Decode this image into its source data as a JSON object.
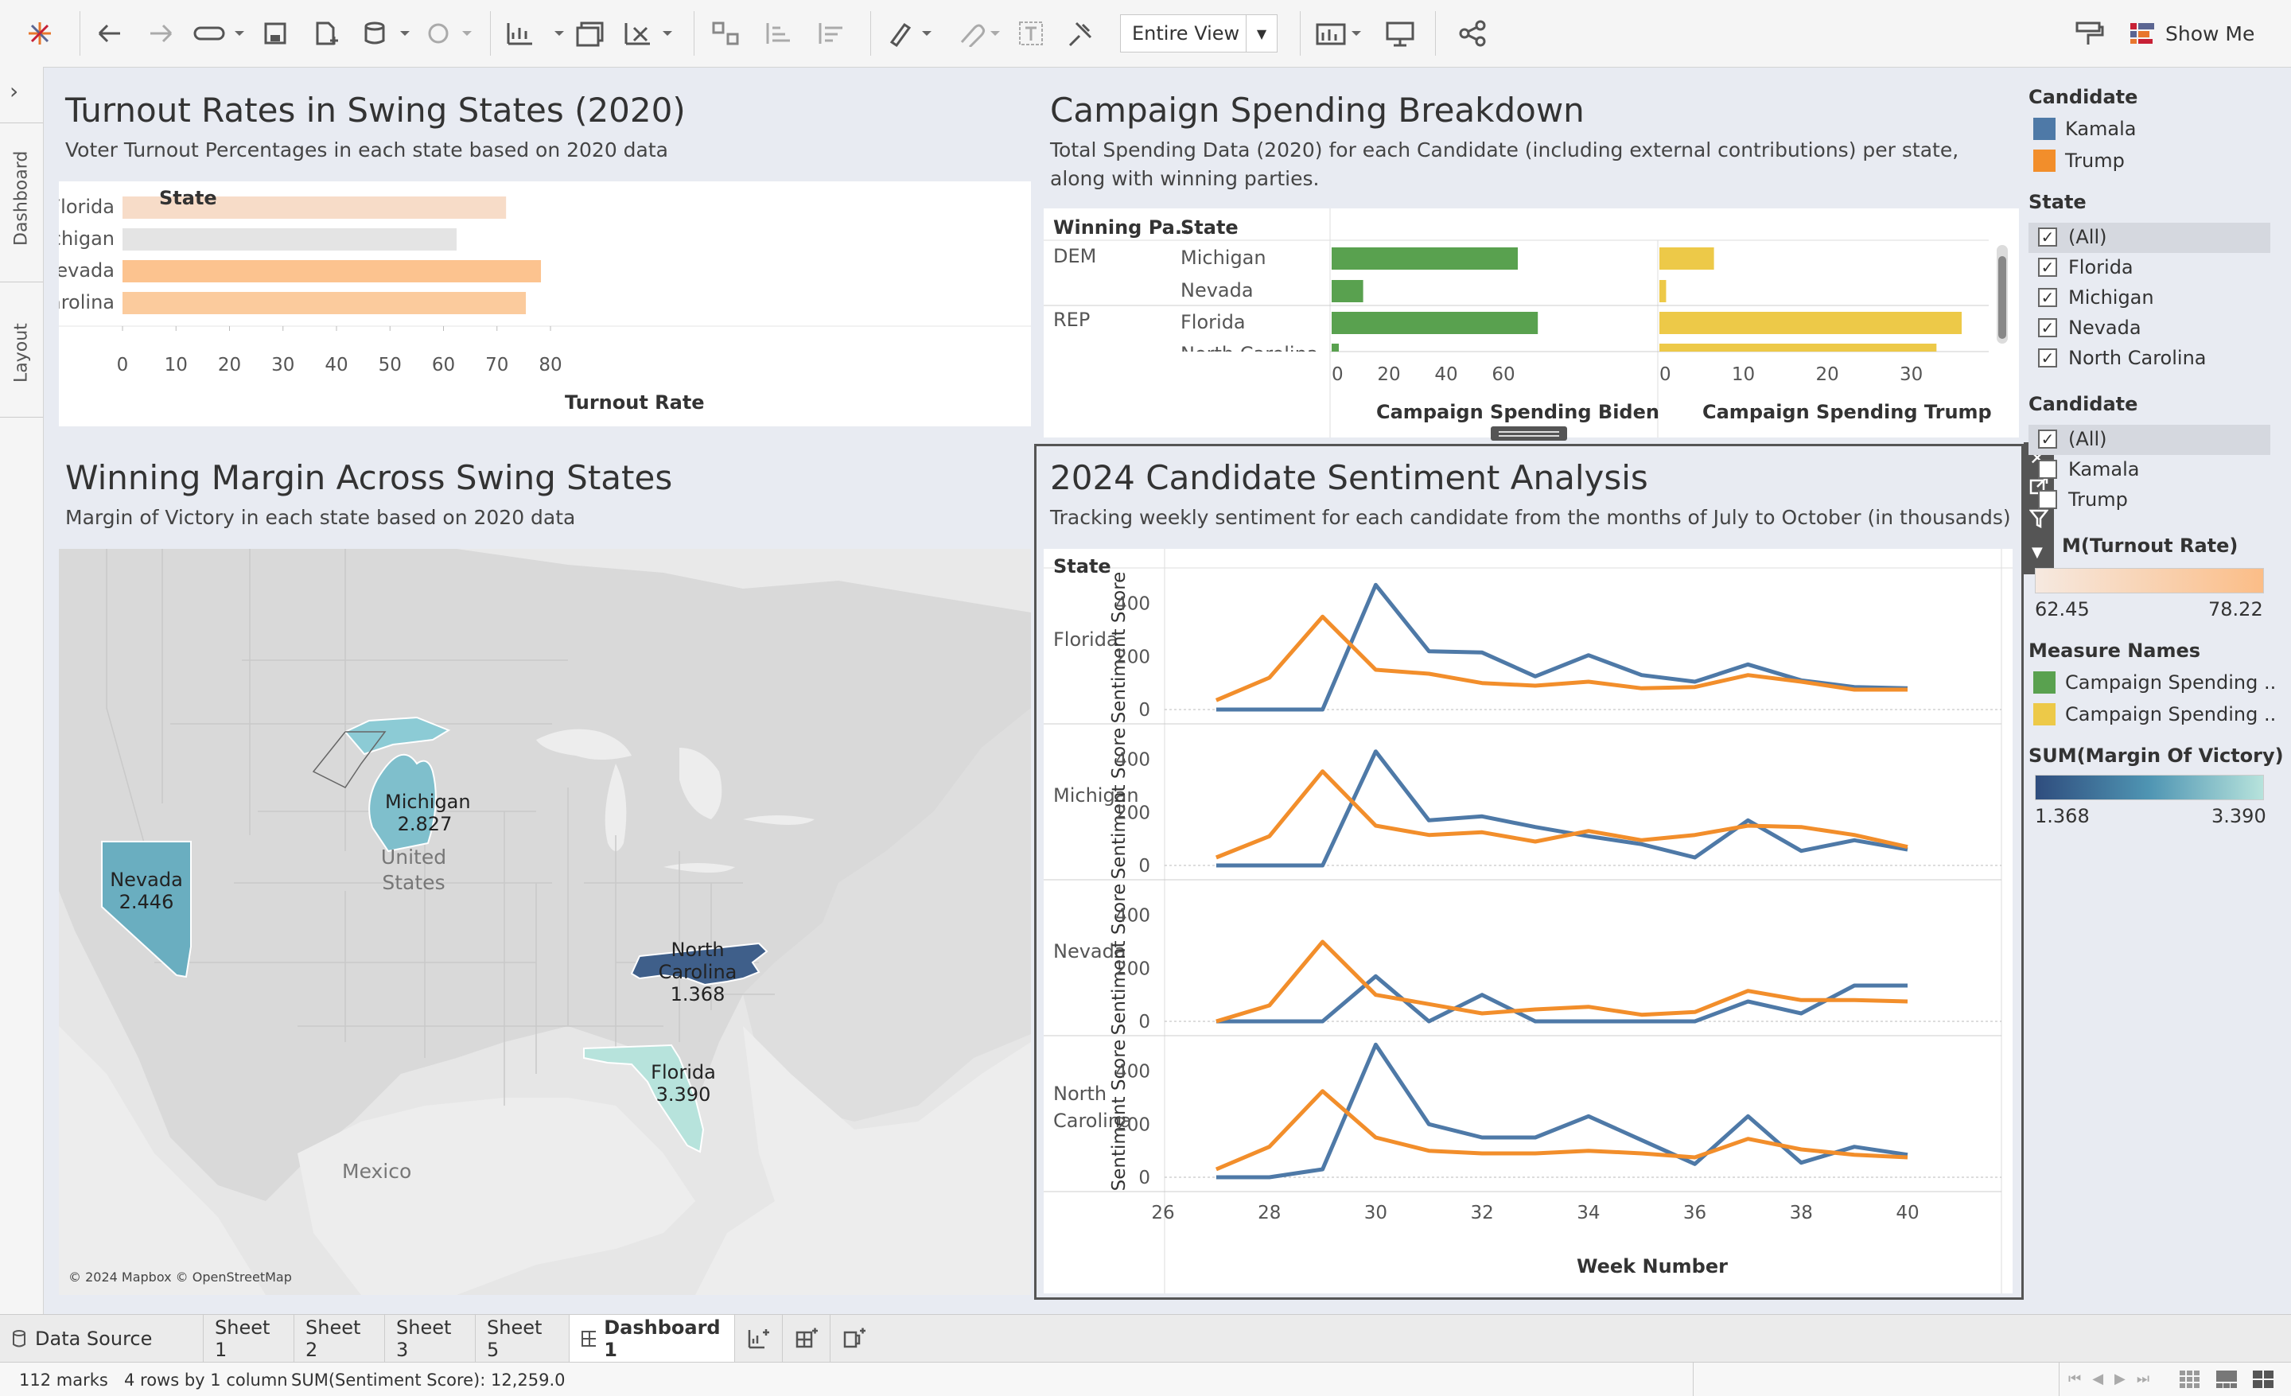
{
  "toolbar": {
    "view_select": "Entire View",
    "show_me": "Show Me",
    "icons": [
      "tableau-logo-icon",
      "undo-icon",
      "redo-icon",
      "pause-update-icon",
      "save-icon",
      "new-datasource-icon",
      "datasource-icon",
      "refresh-icon",
      "new-worksheet-icon",
      "duplicate-icon",
      "clear-icon",
      "swap-icon",
      "sort-asc-icon",
      "sort-desc-icon",
      "highlight-icon",
      "attach-icon",
      "text-icon",
      "pin-icon",
      "chart-icon",
      "presentation-icon",
      "share-icon",
      "format-painter-icon"
    ]
  },
  "side_tabs": {
    "dashboard": "Dashboard",
    "layout": "Layout"
  },
  "turnout": {
    "title": "Turnout Rates in Swing States (2020)",
    "subtitle": "Voter Turnout Percentages in each state based on 2020 data",
    "header": "State",
    "xlabel": "Turnout Rate"
  },
  "spending": {
    "title": "Campaign Spending Breakdown",
    "subtitle_line1": "Total Spending Data (2020) for each Candidate (including external contributions) per state,",
    "subtitle_line2": "along with winning parties.",
    "col1": "Winning Pa..",
    "col2": "State",
    "party_dem": "DEM",
    "party_rep": "REP",
    "xlabel_biden": "Campaign Spending Biden",
    "xlabel_trump": "Campaign Spending Trump"
  },
  "margin": {
    "title": "Winning Margin Across Swing States",
    "subtitle": "Margin of Victory in each state based on 2020 data",
    "map_labels": {
      "united_states": "United States",
      "mexico": "Mexico"
    },
    "attribution": "© 2024 Mapbox © OpenStreetMap"
  },
  "sentiment": {
    "title": "2024 Candidate Sentiment Analysis",
    "subtitle": "Tracking weekly sentiment for each candidate from the months of July to October (in thousands)",
    "header": "State",
    "ylabel": "Sentiment Score",
    "xlabel": "Week Number"
  },
  "legends": {
    "candidate_color": {
      "title": "Candidate",
      "items": [
        {
          "label": "Kamala",
          "color": "#4e79a7"
        },
        {
          "label": "Trump",
          "color": "#f28e2b"
        }
      ]
    },
    "state_filter": {
      "title": "State",
      "items": [
        "(All)",
        "Florida",
        "Michigan",
        "Nevada",
        "North Carolina"
      ]
    },
    "candidate_filter": {
      "title": "Candidate",
      "items": [
        "(All)",
        "Kamala",
        "Trump"
      ]
    },
    "turnout_range": {
      "title": "SUM(Turnout Rate)",
      "title_visible": "M(Turnout Rate)",
      "min": "62.45",
      "max": "78.22"
    },
    "measure_names": {
      "title": "Measure Names",
      "items": [
        {
          "label": "Campaign Spending ..",
          "color": "#59a14f"
        },
        {
          "label": "Campaign Spending ..",
          "color": "#edc948"
        }
      ]
    },
    "margin_range": {
      "title": "SUM(Margin Of Victory)",
      "min": "1.368",
      "max": "3.390"
    }
  },
  "tabs": {
    "data_source": "Data Source",
    "sheets": [
      "Sheet 1",
      "Sheet 2",
      "Sheet 3",
      "Sheet 5"
    ],
    "active": "Dashboard 1"
  },
  "status": {
    "marks": "112 marks",
    "rows": "4 rows by 1 column",
    "sum": "SUM(Sentiment Score): 12,259.0"
  },
  "chart_data": [
    {
      "type": "bar",
      "title": "Turnout Rates in Swing States (2020)",
      "categories": [
        "Florida",
        "Michigan",
        "Nevada",
        "North Carolina"
      ],
      "values": [
        71.7,
        62.45,
        78.22,
        75.4
      ],
      "colors": [
        "#f7dcc8",
        "#e4e4e4",
        "#fcc38f",
        "#fbcb9d"
      ],
      "xlabel": "Turnout Rate",
      "ylabel": "State",
      "xlim": [
        0,
        80
      ],
      "xticks": [
        0,
        10,
        20,
        30,
        40,
        50,
        60,
        70,
        80
      ]
    },
    {
      "type": "bar",
      "title": "Campaign Spending Breakdown",
      "categories": [
        "Michigan",
        "Nevada",
        "Florida",
        "North Carolina"
      ],
      "party": [
        "DEM",
        "DEM",
        "REP",
        "REP"
      ],
      "series": [
        {
          "name": "Campaign Spending Biden",
          "values": [
            65,
            11,
            72,
            2.5
          ],
          "color": "#59a14f",
          "xlim": [
            0,
            75
          ],
          "xticks": [
            0,
            20,
            40,
            60
          ]
        },
        {
          "name": "Campaign Spending Trump",
          "values": [
            6.5,
            0.8,
            36,
            33
          ],
          "color": "#edc948",
          "xlim": [
            0,
            36
          ],
          "xticks": [
            0,
            10,
            20,
            30
          ]
        }
      ]
    },
    {
      "type": "line",
      "title": "2024 Candidate Sentiment Analysis",
      "x": [
        27,
        28,
        29,
        30,
        31,
        32,
        33,
        34,
        35,
        36,
        37,
        38,
        39,
        40
      ],
      "xlabel": "Week Number",
      "ylabel": "Sentiment Score",
      "xlim": [
        26,
        40.5
      ],
      "ylim": [
        0,
        480
      ],
      "xticks": [
        26,
        28,
        30,
        32,
        34,
        36,
        38,
        40
      ],
      "yticks": [
        0,
        200,
        400
      ],
      "panels": [
        {
          "state": "Florida",
          "series": [
            {
              "name": "Kamala",
              "color": "#4e79a7",
              "values": [
                0,
                0,
                0,
                470,
                220,
                215,
                125,
                205,
                130,
                105,
                170,
                110,
                85,
                80
              ]
            },
            {
              "name": "Trump",
              "color": "#f28e2b",
              "values": [
                35,
                120,
                350,
                150,
                135,
                100,
                90,
                105,
                80,
                85,
                130,
                105,
                75,
                75
              ]
            }
          ]
        },
        {
          "state": "Michigan",
          "series": [
            {
              "name": "Kamala",
              "color": "#4e79a7",
              "values": [
                0,
                0,
                0,
                430,
                170,
                185,
                145,
                110,
                80,
                30,
                170,
                55,
                95,
                60
              ]
            },
            {
              "name": "Trump",
              "color": "#f28e2b",
              "values": [
                30,
                110,
                355,
                150,
                115,
                125,
                90,
                130,
                95,
                115,
                150,
                145,
                115,
                70
              ]
            }
          ]
        },
        {
          "state": "Nevada",
          "series": [
            {
              "name": "Kamala",
              "color": "#4e79a7",
              "values": [
                0,
                0,
                0,
                170,
                0,
                100,
                0,
                0,
                0,
                0,
                75,
                30,
                135,
                135
              ]
            },
            {
              "name": "Trump",
              "color": "#f28e2b",
              "values": [
                0,
                60,
                300,
                100,
                65,
                30,
                45,
                55,
                25,
                35,
                115,
                80,
                80,
                75
              ]
            }
          ]
        },
        {
          "state": "North Carolina",
          "series": [
            {
              "name": "Kamala",
              "color": "#4e79a7",
              "values": [
                0,
                0,
                30,
                500,
                200,
                150,
                150,
                230,
                140,
                50,
                230,
                55,
                115,
                85
              ]
            },
            {
              "name": "Trump",
              "color": "#f28e2b",
              "values": [
                30,
                115,
                325,
                150,
                100,
                90,
                90,
                100,
                90,
                75,
                145,
                105,
                85,
                75
              ]
            }
          ]
        }
      ]
    },
    {
      "type": "map",
      "title": "Winning Margin Across Swing States",
      "measure": "Margin of Victory",
      "regions": [
        {
          "state": "Michigan",
          "value": "2.827",
          "color": "#7fbfcc"
        },
        {
          "state": "Nevada",
          "value": "2.446",
          "color": "#6aaec0"
        },
        {
          "state": "North Carolina",
          "value": "1.368",
          "color": "#3f5f8a"
        },
        {
          "state": "Florida",
          "value": "3.390",
          "color": "#b7e3dc"
        }
      ]
    }
  ]
}
